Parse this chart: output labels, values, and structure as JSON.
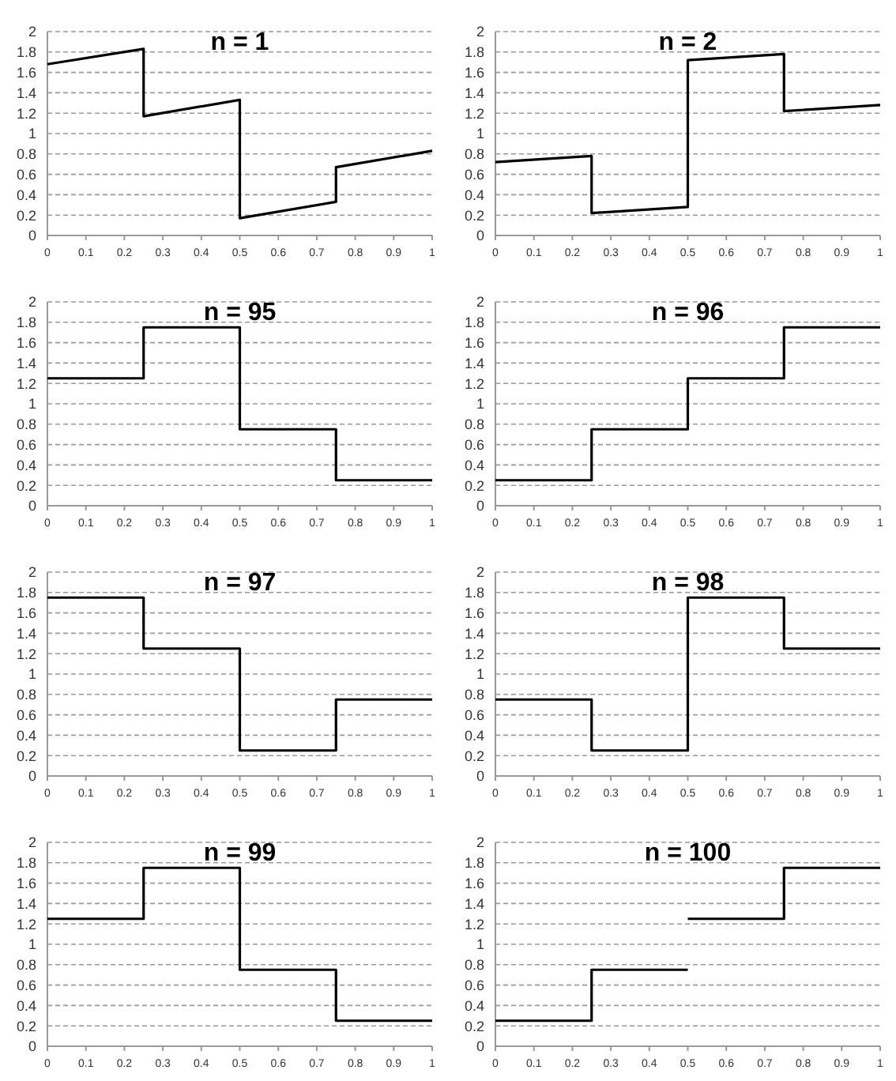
{
  "chart_data": [
    {
      "type": "line",
      "title": "n = 1",
      "xlim": [
        0,
        1
      ],
      "ylim": [
        0,
        2
      ],
      "xticks": [
        0,
        0.1,
        0.2,
        0.3,
        0.4,
        0.5,
        0.6,
        0.7,
        0.8,
        0.9,
        1
      ],
      "yticks": [
        0,
        0.2,
        0.4,
        0.6,
        0.8,
        1,
        1.2,
        1.4,
        1.6,
        1.8,
        2
      ],
      "grid": "y",
      "series": [
        {
          "color": "#000000",
          "x": [
            0,
            0.25,
            0.25,
            0.5,
            0.5,
            0.75,
            0.75,
            1
          ],
          "values": [
            1.68,
            1.83,
            1.17,
            1.33,
            0.17,
            0.33,
            0.67,
            0.83
          ]
        }
      ]
    },
    {
      "type": "line",
      "title": "n = 2",
      "xlim": [
        0,
        1
      ],
      "ylim": [
        0,
        2
      ],
      "xticks": [
        0,
        0.1,
        0.2,
        0.3,
        0.4,
        0.5,
        0.6,
        0.7,
        0.8,
        0.9,
        1
      ],
      "yticks": [
        0,
        0.2,
        0.4,
        0.6,
        0.8,
        1,
        1.2,
        1.4,
        1.6,
        1.8,
        2
      ],
      "grid": "y",
      "series": [
        {
          "color": "#000000",
          "x": [
            0,
            0.25,
            0.25,
            0.5,
            0.5,
            0.75,
            0.75,
            1
          ],
          "values": [
            0.72,
            0.78,
            0.22,
            0.28,
            1.72,
            1.78,
            1.22,
            1.28
          ]
        }
      ]
    },
    {
      "type": "line",
      "title": "n = 95",
      "xlim": [
        0,
        1
      ],
      "ylim": [
        0,
        2
      ],
      "xticks": [
        0,
        0.1,
        0.2,
        0.3,
        0.4,
        0.5,
        0.6,
        0.7,
        0.8,
        0.9,
        1
      ],
      "yticks": [
        0,
        0.2,
        0.4,
        0.6,
        0.8,
        1,
        1.2,
        1.4,
        1.6,
        1.8,
        2
      ],
      "grid": "y",
      "series": [
        {
          "color": "#000000",
          "x": [
            0,
            0.25,
            0.25,
            0.5,
            0.5,
            0.75,
            0.75,
            1
          ],
          "values": [
            1.25,
            1.25,
            1.75,
            1.75,
            0.75,
            0.75,
            0.25,
            0.25
          ]
        }
      ]
    },
    {
      "type": "line",
      "title": "n = 96",
      "xlim": [
        0,
        1
      ],
      "ylim": [
        0,
        2
      ],
      "xticks": [
        0,
        0.1,
        0.2,
        0.3,
        0.4,
        0.5,
        0.6,
        0.7,
        0.8,
        0.9,
        1
      ],
      "yticks": [
        0,
        0.2,
        0.4,
        0.6,
        0.8,
        1,
        1.2,
        1.4,
        1.6,
        1.8,
        2
      ],
      "grid": "y",
      "series": [
        {
          "color": "#000000",
          "x": [
            0,
            0.25,
            0.25,
            0.5,
            0.5,
            0.75,
            0.75,
            1
          ],
          "values": [
            0.25,
            0.25,
            0.75,
            0.75,
            1.25,
            1.25,
            1.75,
            1.75
          ]
        }
      ]
    },
    {
      "type": "line",
      "title": "n = 97",
      "xlim": [
        0,
        1
      ],
      "ylim": [
        0,
        2
      ],
      "xticks": [
        0,
        0.1,
        0.2,
        0.3,
        0.4,
        0.5,
        0.6,
        0.7,
        0.8,
        0.9,
        1
      ],
      "yticks": [
        0,
        0.2,
        0.4,
        0.6,
        0.8,
        1,
        1.2,
        1.4,
        1.6,
        1.8,
        2
      ],
      "grid": "y",
      "series": [
        {
          "color": "#000000",
          "x": [
            0,
            0.25,
            0.25,
            0.5,
            0.5,
            0.75,
            0.75,
            1
          ],
          "values": [
            1.75,
            1.75,
            1.25,
            1.25,
            0.25,
            0.25,
            0.75,
            0.75
          ]
        }
      ]
    },
    {
      "type": "line",
      "title": "n = 98",
      "xlim": [
        0,
        1
      ],
      "ylim": [
        0,
        2
      ],
      "xticks": [
        0,
        0.1,
        0.2,
        0.3,
        0.4,
        0.5,
        0.6,
        0.7,
        0.8,
        0.9,
        1
      ],
      "yticks": [
        0,
        0.2,
        0.4,
        0.6,
        0.8,
        1,
        1.2,
        1.4,
        1.6,
        1.8,
        2
      ],
      "grid": "y",
      "series": [
        {
          "color": "#000000",
          "x": [
            0,
            0.25,
            0.25,
            0.5,
            0.5,
            0.75,
            0.75,
            1
          ],
          "values": [
            0.75,
            0.75,
            0.25,
            0.25,
            1.75,
            1.75,
            1.25,
            1.25
          ]
        }
      ]
    },
    {
      "type": "line",
      "title": "n = 99",
      "xlim": [
        0,
        1
      ],
      "ylim": [
        0,
        2
      ],
      "xticks": [
        0,
        0.1,
        0.2,
        0.3,
        0.4,
        0.5,
        0.6,
        0.7,
        0.8,
        0.9,
        1
      ],
      "yticks": [
        0,
        0.2,
        0.4,
        0.6,
        0.8,
        1,
        1.2,
        1.4,
        1.6,
        1.8,
        2
      ],
      "grid": "y",
      "series": [
        {
          "color": "#000000",
          "x": [
            0,
            0.25,
            0.25,
            0.5,
            0.5,
            0.75,
            0.75,
            1
          ],
          "values": [
            1.25,
            1.25,
            1.75,
            1.75,
            0.75,
            0.75,
            0.25,
            0.25
          ]
        }
      ]
    },
    {
      "type": "line",
      "title": "n = 100",
      "xlim": [
        0,
        1
      ],
      "ylim": [
        0,
        2
      ],
      "xticks": [
        0,
        0.1,
        0.2,
        0.3,
        0.4,
        0.5,
        0.6,
        0.7,
        0.8,
        0.9,
        1
      ],
      "yticks": [
        0,
        0.2,
        0.4,
        0.6,
        0.8,
        1,
        1.2,
        1.4,
        1.6,
        1.8,
        2
      ],
      "grid": "y",
      "series": [
        {
          "color": "#000000",
          "x": [
            0,
            0.25,
            0.25,
            0.5,
            null,
            0.5,
            0.75,
            0.75,
            1
          ],
          "values": [
            0.25,
            0.25,
            0.75,
            0.75,
            null,
            1.25,
            1.25,
            1.75,
            1.75
          ]
        }
      ]
    }
  ]
}
